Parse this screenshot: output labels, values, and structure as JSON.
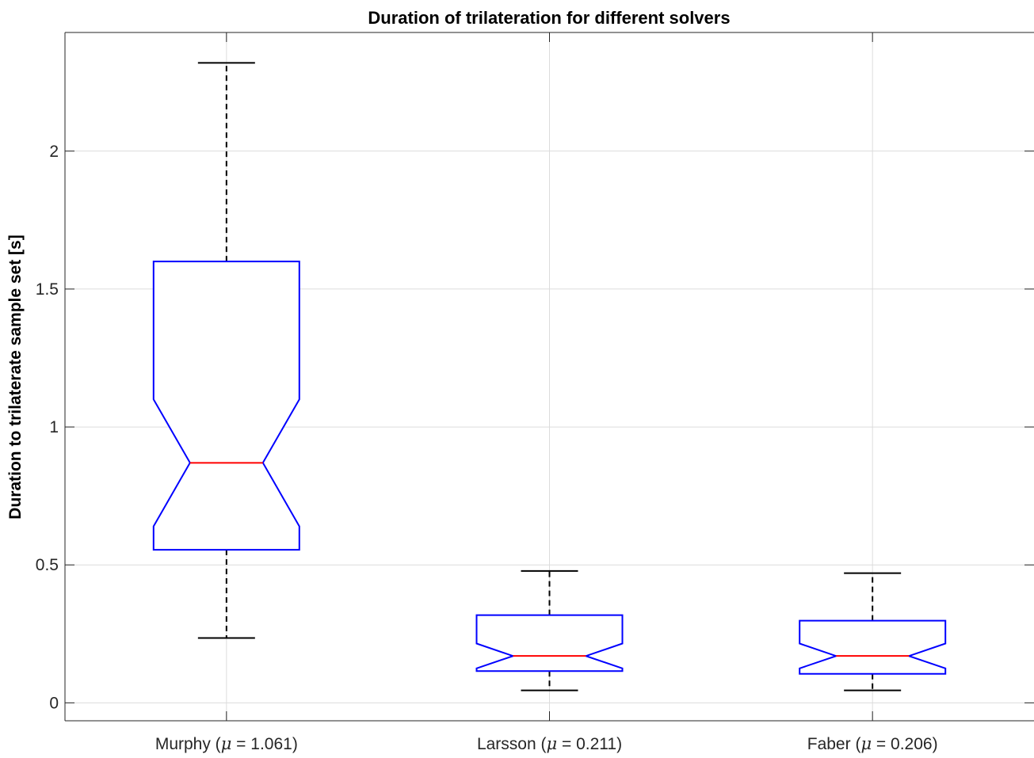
{
  "chart_data": {
    "type": "box",
    "title": "Duration of trilateration for different solvers",
    "xlabel": "",
    "ylabel": "Duration to trilaterate sample set [s]",
    "ylim": [
      -0.065,
      2.43
    ],
    "yticks": [
      0,
      0.5,
      1,
      1.5,
      2
    ],
    "ytick_labels": [
      "0",
      "0.5",
      "1",
      "1.5",
      "2"
    ],
    "grid": true,
    "notched": true,
    "colors": {
      "box": "#0000ff",
      "median": "#ff0000",
      "whisker": "#000000",
      "grid": "#dcdcdc",
      "axis": "#262626"
    },
    "categories": [
      {
        "name": "Murphy",
        "mean_symbol": "μ",
        "mean": "1.061"
      },
      {
        "name": "Larsson",
        "mean_symbol": "μ",
        "mean": "0.211"
      },
      {
        "name": "Faber",
        "mean_symbol": "μ",
        "mean": "0.206"
      }
    ],
    "boxes": [
      {
        "whisker_low": 0.235,
        "q1": 0.555,
        "notch_low": 0.64,
        "median": 0.87,
        "notch_high": 1.1,
        "q3": 1.6,
        "whisker_high": 2.32
      },
      {
        "whisker_low": 0.045,
        "q1": 0.115,
        "notch_low": 0.125,
        "median": 0.17,
        "notch_high": 0.215,
        "q3": 0.318,
        "whisker_high": 0.478
      },
      {
        "whisker_low": 0.045,
        "q1": 0.105,
        "notch_low": 0.125,
        "median": 0.17,
        "notch_high": 0.215,
        "q3": 0.298,
        "whisker_high": 0.47
      }
    ]
  }
}
